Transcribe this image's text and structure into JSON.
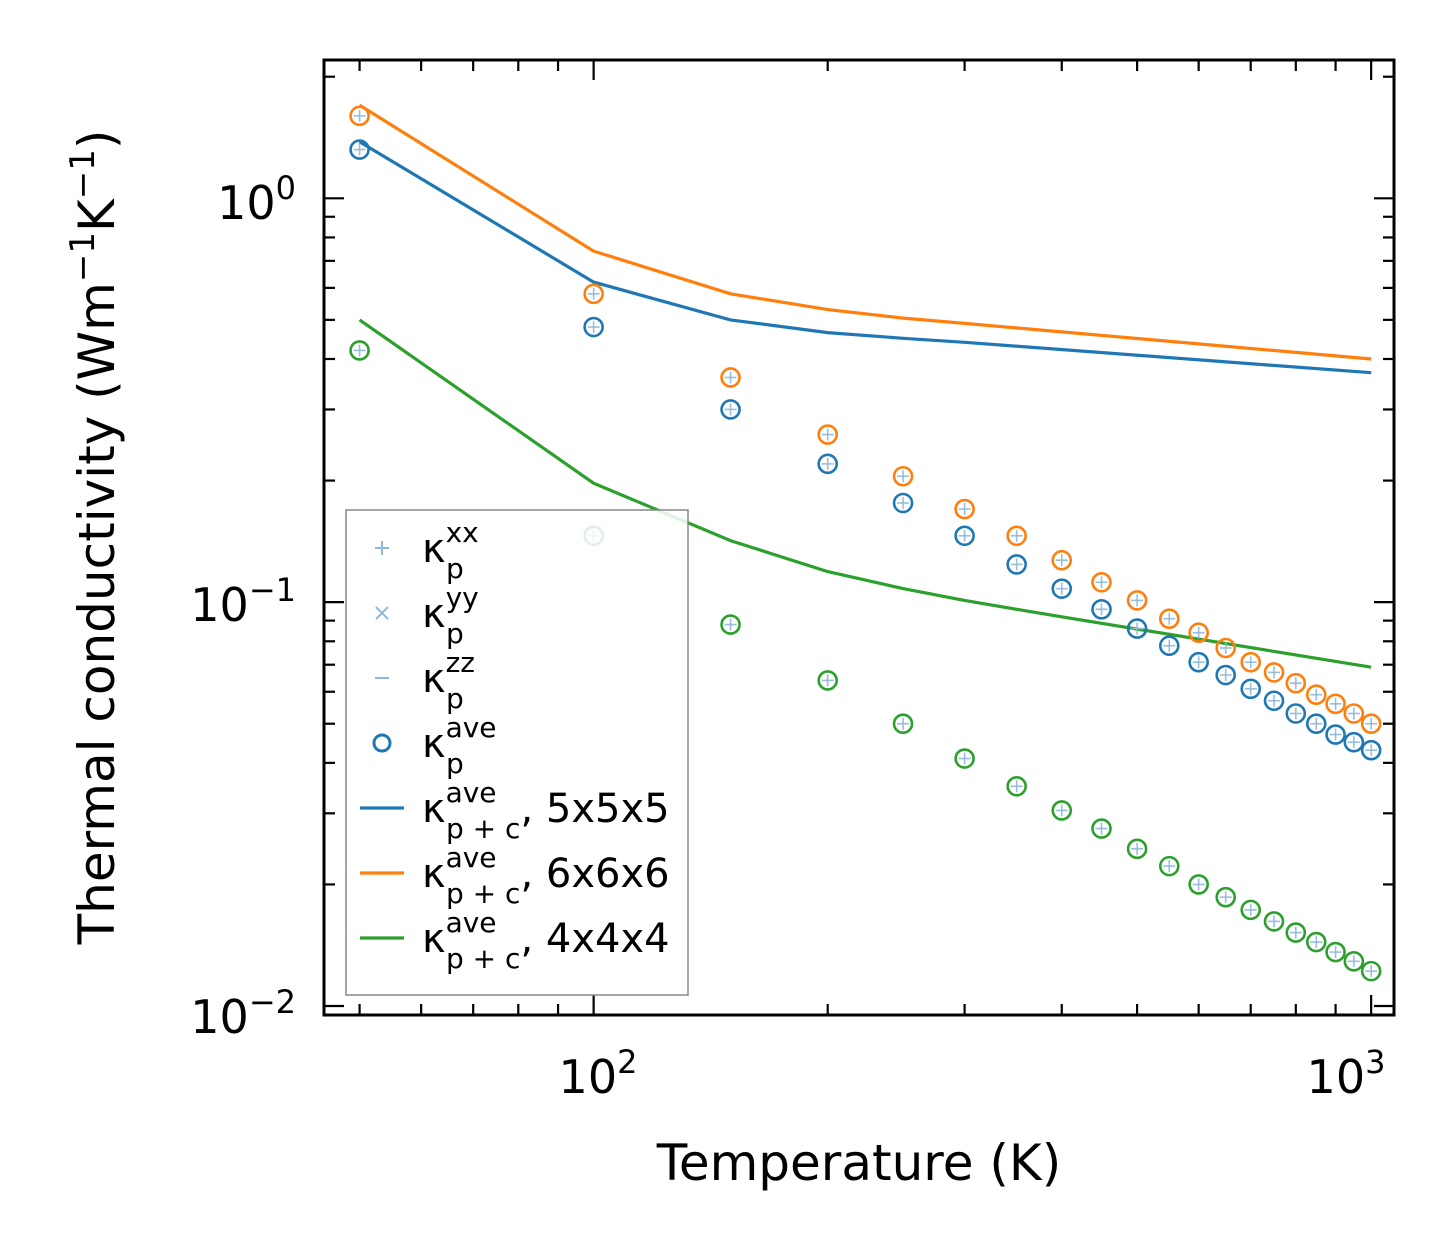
{
  "chart_data": {
    "type": "scatter",
    "title": "",
    "xlabel": "Temperature (K)",
    "ylabel_main": "Thermal conductivity (Wm",
    "ylabel_mid": "K",
    "ylabel_end": ")",
    "ylabel_sup": "−1",
    "xscale": "log",
    "yscale": "log",
    "xlim": [
      45,
      1070
    ],
    "ylim": [
      0.0095,
      2.2
    ],
    "x_ticks": [
      {
        "base": "10",
        "exp": "2",
        "value": 100
      },
      {
        "base": "10",
        "exp": "3",
        "value": 1000
      }
    ],
    "y_ticks": [
      {
        "base": "10",
        "exp": "−2",
        "value": 0.01
      },
      {
        "base": "10",
        "exp": "−1",
        "value": 0.1
      },
      {
        "base": "10",
        "exp": "0",
        "value": 1
      }
    ],
    "x": [
      50,
      100,
      150,
      200,
      250,
      300,
      350,
      400,
      450,
      500,
      550,
      600,
      650,
      700,
      750,
      800,
      850,
      900,
      950,
      1000
    ],
    "series": [
      {
        "name": "κp_ave 5x5x5",
        "kind": "marker",
        "color": "#1f77b4",
        "values": [
          1.32,
          0.48,
          0.3,
          0.22,
          0.176,
          0.146,
          0.124,
          0.108,
          0.096,
          0.086,
          0.078,
          0.071,
          0.066,
          0.061,
          0.057,
          0.053,
          0.05,
          0.047,
          0.045,
          0.043
        ]
      },
      {
        "name": "κp_ave 6x6x6",
        "kind": "marker",
        "color": "#ff7f0e",
        "values": [
          1.6,
          0.58,
          0.36,
          0.26,
          0.205,
          0.17,
          0.146,
          0.127,
          0.112,
          0.101,
          0.091,
          0.084,
          0.077,
          0.071,
          0.067,
          0.063,
          0.059,
          0.056,
          0.053,
          0.05
        ]
      },
      {
        "name": "κp_ave 4x4x4",
        "kind": "marker",
        "color": "#2ca02c",
        "values": [
          0.42,
          0.146,
          0.088,
          0.064,
          0.05,
          0.041,
          0.035,
          0.0305,
          0.0275,
          0.0245,
          0.0222,
          0.02,
          0.0186,
          0.0173,
          0.0162,
          0.0152,
          0.0144,
          0.0136,
          0.0129,
          0.0122
        ]
      },
      {
        "name": "κp+c_ave 5x5x5",
        "kind": "line",
        "color": "#1f77b4",
        "x": [
          50,
          100,
          150,
          200,
          250,
          300,
          1000
        ],
        "values": [
          1.38,
          0.62,
          0.5,
          0.465,
          0.45,
          0.44,
          0.37
        ]
      },
      {
        "name": "κp+c_ave 6x6x6",
        "kind": "line",
        "color": "#ff7f0e",
        "x": [
          50,
          100,
          150,
          200,
          250,
          300,
          1000
        ],
        "values": [
          1.7,
          0.74,
          0.58,
          0.53,
          0.505,
          0.49,
          0.4
        ]
      },
      {
        "name": "κp+c_ave 4x4x4",
        "kind": "line",
        "color": "#2ca02c",
        "x": [
          50,
          100,
          150,
          200,
          250,
          300,
          350,
          400,
          1000
        ],
        "values": [
          0.5,
          0.197,
          0.142,
          0.119,
          0.108,
          0.101,
          0.096,
          0.092,
          0.069
        ]
      }
    ],
    "legend": {
      "placement": "lower-left",
      "entries": [
        {
          "symbol": "plus",
          "color": "#8fb9d9",
          "label": "κ",
          "sub": "p",
          "sup": "xx",
          "suffix": ""
        },
        {
          "symbol": "cross",
          "color": "#8fb9d9",
          "label": "κ",
          "sub": "p",
          "sup": "yy",
          "suffix": ""
        },
        {
          "symbol": "dash",
          "color": "#8fb9d9",
          "label": "κ",
          "sub": "p",
          "sup": "zz",
          "suffix": ""
        },
        {
          "symbol": "circle",
          "color": "#1f77b4",
          "label": "κ",
          "sub": "p",
          "sup": "ave",
          "suffix": ""
        },
        {
          "symbol": "line",
          "color": "#1f77b4",
          "label": "κ",
          "sub": "p + c",
          "sup": "ave",
          "suffix": ", 5x5x5"
        },
        {
          "symbol": "line",
          "color": "#ff7f0e",
          "label": "κ",
          "sub": "p + c",
          "sup": "ave",
          "suffix": ", 6x6x6"
        },
        {
          "symbol": "line",
          "color": "#2ca02c",
          "label": "κ",
          "sub": "p + c",
          "sup": "ave",
          "suffix": ", 4x4x4"
        }
      ]
    },
    "grid": false
  }
}
